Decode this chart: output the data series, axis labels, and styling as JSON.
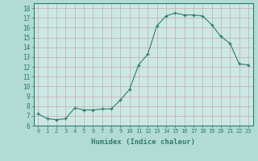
{
  "x": [
    0,
    1,
    2,
    3,
    4,
    5,
    6,
    7,
    8,
    9,
    10,
    11,
    12,
    13,
    14,
    15,
    16,
    17,
    18,
    19,
    20,
    21,
    22,
    23
  ],
  "y": [
    7.2,
    6.7,
    6.6,
    6.7,
    7.8,
    7.6,
    7.6,
    7.7,
    7.7,
    8.6,
    9.7,
    12.2,
    13.3,
    16.2,
    17.2,
    17.5,
    17.3,
    17.3,
    17.2,
    16.3,
    15.1,
    14.4,
    12.3,
    12.2
  ],
  "xlabel": "Humidex (Indice chaleur)",
  "xlim": [
    -0.5,
    23.5
  ],
  "ylim": [
    6,
    18.5
  ],
  "yticks": [
    6,
    7,
    8,
    9,
    10,
    11,
    12,
    13,
    14,
    15,
    16,
    17,
    18
  ],
  "xticks": [
    0,
    1,
    2,
    3,
    4,
    5,
    6,
    7,
    8,
    9,
    10,
    11,
    12,
    13,
    14,
    15,
    16,
    17,
    18,
    19,
    20,
    21,
    22,
    23
  ],
  "line_color": "#2e7d6e",
  "marker": "+",
  "bg_color": "#b2dbd6",
  "grid_color": "#c8a8a8",
  "plot_bg": "#cce8e4"
}
